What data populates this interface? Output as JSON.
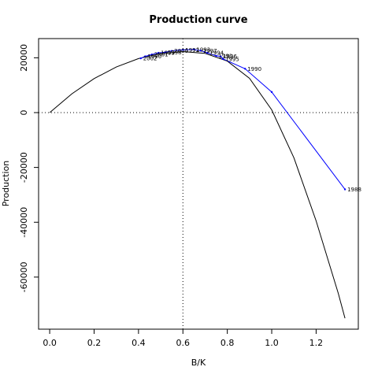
{
  "chart_data": {
    "type": "line",
    "title": "Production curve",
    "xlabel": "B/K",
    "ylabel": "Production",
    "xlim": [
      -0.05,
      1.39
    ],
    "ylim": [
      -79000,
      27000
    ],
    "x_ticks": [
      0.0,
      0.2,
      0.4,
      0.6,
      0.8,
      1.0,
      1.2
    ],
    "x_tick_labels": [
      "0.0",
      "0.2",
      "0.4",
      "0.6",
      "0.8",
      "1.0",
      "1.2"
    ],
    "y_ticks": [
      20000,
      0,
      -20000,
      -40000,
      -60000
    ],
    "y_tick_labels": [
      "20000",
      "0",
      "-20000",
      "-40000",
      "-60000"
    ],
    "reference_lines": {
      "horizontal_y": 0,
      "vertical_x": 0.6
    },
    "fitted_curve": {
      "color": "#000000",
      "x_range": [
        0.0,
        1.33
      ],
      "points": [
        {
          "x": 0.0,
          "y": 0
        },
        {
          "x": 0.1,
          "y": 6850
        },
        {
          "x": 0.2,
          "y": 12400
        },
        {
          "x": 0.3,
          "y": 16650
        },
        {
          "x": 0.4,
          "y": 19700
        },
        {
          "x": 0.5,
          "y": 21550
        },
        {
          "x": 0.6,
          "y": 22250
        },
        {
          "x": 0.7,
          "y": 21600
        },
        {
          "x": 0.8,
          "y": 18800
        },
        {
          "x": 0.9,
          "y": 12500
        },
        {
          "x": 1.0,
          "y": 1000
        },
        {
          "x": 1.1,
          "y": -16500
        },
        {
          "x": 1.2,
          "y": -39500
        },
        {
          "x": 1.3,
          "y": -66000
        },
        {
          "x": 1.33,
          "y": -75000
        }
      ]
    },
    "series": [
      {
        "color": "#0000ff",
        "points": [
          {
            "x": 1.33,
            "y": -28000,
            "label": "1988"
          },
          {
            "x": 1.0,
            "y": 7500,
            "label": ""
          },
          {
            "x": 0.88,
            "y": 16000,
            "label": "1990"
          },
          {
            "x": 0.78,
            "y": 19600,
            "label": "1995"
          },
          {
            "x": 0.77,
            "y": 20500,
            "label": "1996"
          },
          {
            "x": 0.75,
            "y": 20700,
            "label": "1991"
          },
          {
            "x": 0.71,
            "y": 21800,
            "label": "1994"
          },
          {
            "x": 0.68,
            "y": 22600,
            "label": "1997"
          },
          {
            "x": 0.65,
            "y": 23000,
            "label": "1993"
          },
          {
            "x": 0.6,
            "y": 22900,
            "label": "1992"
          },
          {
            "x": 0.55,
            "y": 22500,
            "label": "2000"
          },
          {
            "x": 0.52,
            "y": 22000,
            "label": "1998"
          },
          {
            "x": 0.49,
            "y": 21800,
            "label": "1999"
          },
          {
            "x": 0.46,
            "y": 21200,
            "label": "2001"
          },
          {
            "x": 0.43,
            "y": 20500,
            "label": "1990"
          },
          {
            "x": 0.41,
            "y": 19800,
            "label": "2002"
          }
        ]
      }
    ],
    "grid": false,
    "legend": "none"
  }
}
